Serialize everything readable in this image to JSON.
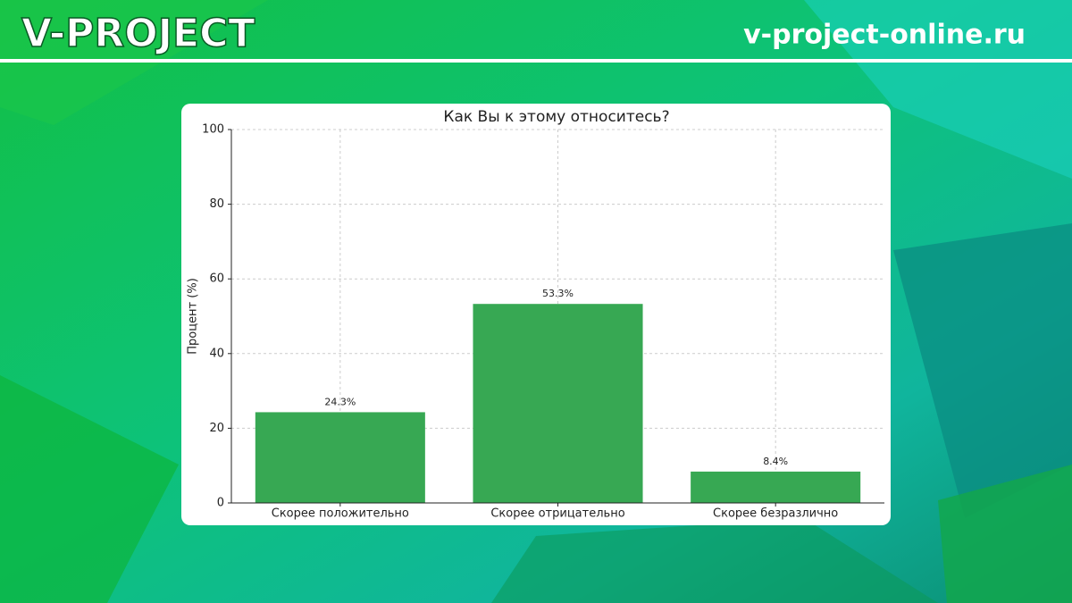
{
  "header": {
    "brand": "V-PROJECT",
    "site": "v-project-online.ru"
  },
  "chart_data": {
    "type": "bar",
    "title": "Как Вы к этому относитесь?",
    "y_label": "Процент (%)",
    "categories": [
      "Скорее положительно",
      "Скорее отрицательно",
      "Скорее безразлично"
    ],
    "values": [
      24.3,
      53.3,
      8.4
    ],
    "value_labels": [
      "24.3%",
      "53.3%",
      "8.4%"
    ],
    "color": "#37a853",
    "ylim": [
      0,
      100
    ],
    "yticks": [
      0,
      20,
      40,
      60,
      80,
      100
    ],
    "grid": true
  }
}
